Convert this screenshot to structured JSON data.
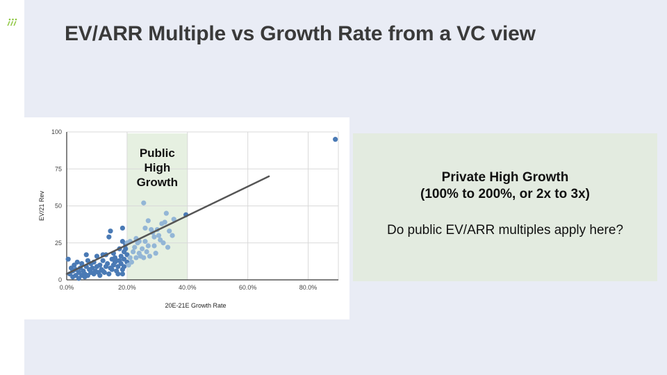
{
  "slide": {
    "title": "EV/ARR Multiple vs Growth Rate from a VC view",
    "logo_icon": "brand-logo-icon",
    "accent": "#8dc63f"
  },
  "callout": {
    "title_line1": "Private High Growth",
    "title_line2": "(100% to 200%, or 2x to 3x)",
    "question": "Do public EV/ARR multiples apply here?"
  },
  "chart_data": {
    "type": "scatter",
    "title": "",
    "xlabel": "20E-21E Growth Rate",
    "ylabel": "EV/21 Rev",
    "xlim": [
      0,
      0.9
    ],
    "ylim": [
      0,
      100
    ],
    "x_ticks": [
      0,
      0.2,
      0.4,
      0.6,
      0.8
    ],
    "x_tick_labels": [
      "0.0%",
      "20.0%",
      "40.0%",
      "60.0%",
      "80.0%"
    ],
    "y_ticks": [
      0,
      25,
      50,
      75,
      100
    ],
    "y_tick_labels": [
      "0",
      "25",
      "50",
      "75",
      "100"
    ],
    "grid": true,
    "band": {
      "x_range": [
        0.2,
        0.4
      ],
      "y_range": [
        0,
        99
      ],
      "label_lines": [
        "Public",
        "High",
        "Growth"
      ],
      "color": "#e6f0e1"
    },
    "trendline": {
      "points": [
        [
          0.0,
          4
        ],
        [
          0.67,
          70
        ]
      ],
      "color": "#555555"
    },
    "series": [
      {
        "color": "#4a7ab5",
        "points": [
          [
            0.005,
            14
          ],
          [
            0.01,
            4
          ],
          [
            0.015,
            8
          ],
          [
            0.02,
            2
          ],
          [
            0.02,
            6
          ],
          [
            0.025,
            10
          ],
          [
            0.03,
            3
          ],
          [
            0.03,
            7
          ],
          [
            0.035,
            12
          ],
          [
            0.04,
            1
          ],
          [
            0.04,
            5
          ],
          [
            0.045,
            8
          ],
          [
            0.05,
            3
          ],
          [
            0.05,
            11
          ],
          [
            0.055,
            6
          ],
          [
            0.06,
            2
          ],
          [
            0.06,
            4
          ],
          [
            0.065,
            9
          ],
          [
            0.065,
            17
          ],
          [
            0.07,
            3
          ],
          [
            0.07,
            13
          ],
          [
            0.075,
            7
          ],
          [
            0.08,
            11
          ],
          [
            0.08,
            5
          ],
          [
            0.085,
            8
          ],
          [
            0.09,
            12
          ],
          [
            0.09,
            4
          ],
          [
            0.095,
            6
          ],
          [
            0.1,
            16
          ],
          [
            0.1,
            9
          ],
          [
            0.105,
            5
          ],
          [
            0.11,
            10
          ],
          [
            0.11,
            3
          ],
          [
            0.115,
            7
          ],
          [
            0.12,
            13
          ],
          [
            0.12,
            17
          ],
          [
            0.125,
            5
          ],
          [
            0.13,
            9
          ],
          [
            0.13,
            17
          ],
          [
            0.135,
            11
          ],
          [
            0.14,
            29
          ],
          [
            0.14,
            4
          ],
          [
            0.145,
            33
          ],
          [
            0.15,
            14
          ],
          [
            0.15,
            7
          ],
          [
            0.155,
            10
          ],
          [
            0.16,
            12
          ],
          [
            0.16,
            15
          ],
          [
            0.165,
            6
          ],
          [
            0.17,
            9
          ],
          [
            0.17,
            4
          ],
          [
            0.175,
            13
          ],
          [
            0.18,
            16
          ],
          [
            0.18,
            11
          ],
          [
            0.185,
            35
          ],
          [
            0.185,
            26
          ],
          [
            0.19,
            19
          ],
          [
            0.19,
            9
          ],
          [
            0.19,
            14
          ],
          [
            0.195,
            24
          ],
          [
            0.185,
            4
          ],
          [
            0.2,
            17
          ],
          [
            0.2,
            12
          ],
          [
            0.175,
            21
          ],
          [
            0.155,
            18
          ],
          [
            0.195,
            21
          ],
          [
            0.185,
            7
          ],
          [
            0.165,
            13
          ],
          [
            0.145,
            8
          ],
          [
            0.12,
            6
          ]
        ]
      },
      {
        "color": "#93b6d6",
        "points": [
          [
            0.2,
            25
          ],
          [
            0.205,
            10
          ],
          [
            0.21,
            15
          ],
          [
            0.215,
            12
          ],
          [
            0.22,
            19
          ],
          [
            0.225,
            22
          ],
          [
            0.23,
            28
          ],
          [
            0.23,
            15
          ],
          [
            0.235,
            25
          ],
          [
            0.24,
            18
          ],
          [
            0.245,
            16
          ],
          [
            0.25,
            21
          ],
          [
            0.255,
            52
          ],
          [
            0.255,
            15
          ],
          [
            0.26,
            26
          ],
          [
            0.265,
            19
          ],
          [
            0.27,
            40
          ],
          [
            0.27,
            23
          ],
          [
            0.275,
            16
          ],
          [
            0.28,
            34
          ],
          [
            0.285,
            32
          ],
          [
            0.29,
            23
          ],
          [
            0.295,
            18
          ],
          [
            0.3,
            34
          ],
          [
            0.305,
            30
          ],
          [
            0.31,
            27
          ],
          [
            0.315,
            38
          ],
          [
            0.32,
            25
          ],
          [
            0.325,
            39
          ],
          [
            0.33,
            45
          ],
          [
            0.335,
            22
          ],
          [
            0.34,
            33
          ],
          [
            0.35,
            30
          ],
          [
            0.355,
            41
          ],
          [
            0.24,
            26
          ],
          [
            0.26,
            35
          ],
          [
            0.29,
            29
          ],
          [
            0.21,
            26
          ]
        ]
      },
      {
        "color": "#4a7ab5",
        "points": [
          [
            0.395,
            44
          ],
          [
            0.89,
            95
          ]
        ]
      }
    ]
  }
}
